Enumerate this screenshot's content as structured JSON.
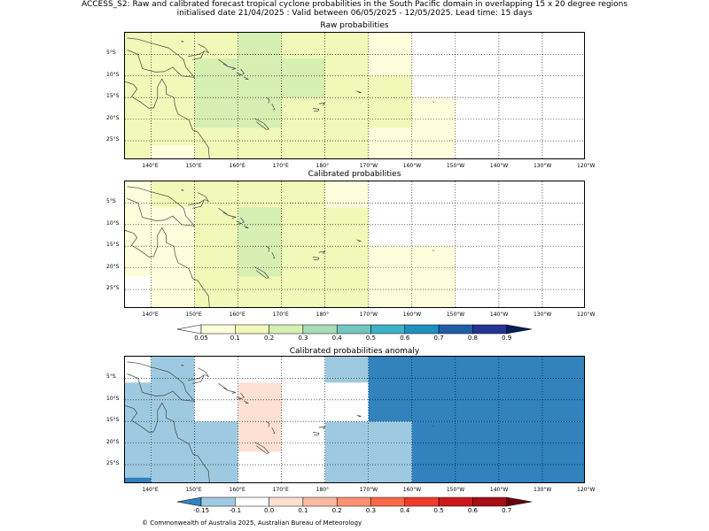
{
  "title_line1": "ACCESS_S2: Raw and calibrated forecast tropical cyclone probabilities in the South Pacific domain in overlapping 15 x 20 degree regions",
  "title_line2": "initialised date 21/04/2025 :  Valid between 06/05/2025 - 12/05/2025. Lead time: 15 days",
  "panels": [
    {
      "title": "Raw probabilities"
    },
    {
      "title": "Calibrated probabilities"
    },
    {
      "title": "Calibrated probabilities anomaly"
    }
  ],
  "lon_ticks": [
    "140°E",
    "150°E",
    "160°E",
    "170°E",
    "180°",
    "170°W",
    "160°W",
    "150°W",
    "140°W",
    "130°W",
    "120°W"
  ],
  "lat_ticks": [
    "5°S",
    "10°S",
    "15°S",
    "20°S",
    "25°S"
  ],
  "prob_colorbar": {
    "labels": [
      "0.05",
      "0.1",
      "0.2",
      "0.3",
      "0.4",
      "0.5",
      "0.6",
      "0.7",
      "0.8",
      "0.9"
    ],
    "colors": [
      "#ffffdd",
      "#f0f9b8",
      "#d6efb3",
      "#a8ddb5",
      "#74c5bf",
      "#3fb1c6",
      "#1e91c0",
      "#225ea8",
      "#253494",
      "#081d58"
    ]
  },
  "anom_colorbar": {
    "labels": [
      "-0.15",
      "-0.1",
      "0.0",
      "0.1",
      "0.2",
      "0.3",
      "0.4",
      "0.5",
      "0.6",
      "0.7"
    ],
    "colors": [
      "#9ecae1",
      "#ffffff",
      "#fee0d2",
      "#fcbba1",
      "#fc9272",
      "#fb6a4a",
      "#ef3b2c",
      "#cb181d",
      "#a50f15"
    ],
    "under_color": "#3182bd",
    "over_color": "#67000d"
  },
  "map_data": {
    "raw": [
      {
        "lon": [
          134,
          150
        ],
        "lat": [
          0,
          -35
        ],
        "value": 0.1
      },
      {
        "lon": [
          150,
          170
        ],
        "lat": [
          0,
          -35
        ],
        "value": 0.1
      },
      {
        "lon": [
          170,
          190
        ],
        "lat": [
          0,
          -35
        ],
        "value": 0.1
      },
      {
        "lon": [
          190,
          200
        ],
        "lat": [
          0,
          -10
        ],
        "value": 0.05
      },
      {
        "lon": [
          190,
          200
        ],
        "lat": [
          -10,
          -22
        ],
        "value": 0.1
      },
      {
        "lon": [
          190,
          200
        ],
        "lat": [
          -22,
          -35
        ],
        "value": 0.05
      },
      {
        "lon": [
          200,
          210
        ],
        "lat": [
          -15,
          -35
        ],
        "value": 0.05
      },
      {
        "lon": [
          134,
          140
        ],
        "lat": [
          -22,
          -26
        ],
        "value": 0
      },
      {
        "lon": [
          134,
          140
        ],
        "lat": [
          -26,
          -35
        ],
        "value": 0
      },
      {
        "lon": [
          140,
          150
        ],
        "lat": [
          -26,
          -35
        ],
        "value": 0.05
      },
      {
        "lon": [
          150,
          170
        ],
        "lat": [
          -27,
          -35
        ],
        "value": 0.1
      },
      {
        "lon": [
          150,
          170
        ],
        "lat": [
          -6,
          -22
        ],
        "value": 0.2
      },
      {
        "lon": [
          160,
          170
        ],
        "lat": [
          0,
          -6
        ],
        "value": 0.2
      },
      {
        "lon": [
          170,
          180
        ],
        "lat": [
          -6,
          -15
        ],
        "value": 0.2
      }
    ],
    "calibrated": [
      {
        "lon": [
          134,
          140
        ],
        "lat": [
          0,
          -22
        ],
        "value": 0.05
      },
      {
        "lon": [
          140,
          150
        ],
        "lat": [
          0,
          -6
        ],
        "value": 0.1
      },
      {
        "lon": [
          140,
          150
        ],
        "lat": [
          -6,
          -26
        ],
        "value": 0.05
      },
      {
        "lon": [
          140,
          150
        ],
        "lat": [
          -26,
          -35
        ],
        "value": 0.05
      },
      {
        "lon": [
          150,
          180
        ],
        "lat": [
          0,
          -35
        ],
        "value": 0.1
      },
      {
        "lon": [
          180,
          190
        ],
        "lat": [
          0,
          -6
        ],
        "value": 0.05
      },
      {
        "lon": [
          180,
          190
        ],
        "lat": [
          -6,
          -15
        ],
        "value": 0.1
      },
      {
        "lon": [
          180,
          190
        ],
        "lat": [
          -15,
          -35
        ],
        "value": 0.1
      },
      {
        "lon": [
          190,
          200
        ],
        "lat": [
          -15,
          -35
        ],
        "value": 0.05
      },
      {
        "lon": [
          200,
          210
        ],
        "lat": [
          -15,
          -35
        ],
        "value": 0.05
      },
      {
        "lon": [
          160,
          170
        ],
        "lat": [
          -6,
          -22
        ],
        "value": 0.2
      }
    ],
    "anomaly": [
      {
        "lon": [
          134,
          140
        ],
        "lat": [
          0,
          -6
        ],
        "value": 0
      },
      {
        "lon": [
          134,
          140
        ],
        "lat": [
          -6,
          -28
        ],
        "value": -0.1
      },
      {
        "lon": [
          134,
          140
        ],
        "lat": [
          -28,
          -35
        ],
        "value": -0.15
      },
      {
        "lon": [
          140,
          150
        ],
        "lat": [
          0,
          -15
        ],
        "value": -0.1
      },
      {
        "lon": [
          140,
          150
        ],
        "lat": [
          -15,
          -35
        ],
        "value": -0.1
      },
      {
        "lon": [
          150,
          160
        ],
        "lat": [
          -15,
          -35
        ],
        "value": -0.1
      },
      {
        "lon": [
          160,
          170
        ],
        "lat": [
          -6,
          -22
        ],
        "value": 0.05
      },
      {
        "lon": [
          180,
          190
        ],
        "lat": [
          0,
          -6
        ],
        "value": -0.1
      },
      {
        "lon": [
          180,
          200
        ],
        "lat": [
          -15,
          -35
        ],
        "value": -0.1
      },
      {
        "lon": [
          190,
          240
        ],
        "lat": [
          0,
          -15
        ],
        "value": -0.15
      },
      {
        "lon": [
          200,
          240
        ],
        "lat": [
          -15,
          -35
        ],
        "value": -0.15
      }
    ]
  }
}
